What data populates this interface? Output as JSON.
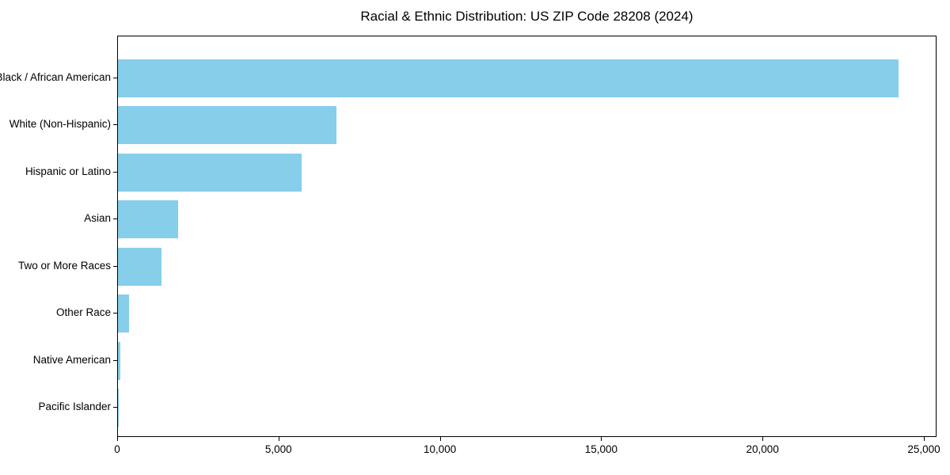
{
  "chart_data": {
    "type": "bar",
    "orientation": "horizontal",
    "title": "Racial & Ethnic Distribution: US ZIP Code 28208 (2024)",
    "categories": [
      "Black / African American",
      "White (Non-Hispanic)",
      "Hispanic or Latino",
      "Asian",
      "Two or More Races",
      "Other Race",
      "Native American",
      "Pacific Islander"
    ],
    "values": [
      24180,
      6770,
      5690,
      1860,
      1350,
      345,
      70,
      15
    ],
    "x_ticks": [
      0,
      5000,
      10000,
      15000,
      20000,
      25000
    ],
    "x_tick_labels": [
      "0",
      "5,000",
      "10,000",
      "15,000",
      "20,000",
      "25,000"
    ],
    "xlim": [
      0,
      25392
    ],
    "xlabel": "",
    "ylabel": "",
    "bar_color": "#87CEEB",
    "spine_color": "#000000",
    "text_color": "#000000",
    "grid": false,
    "legend": false
  }
}
